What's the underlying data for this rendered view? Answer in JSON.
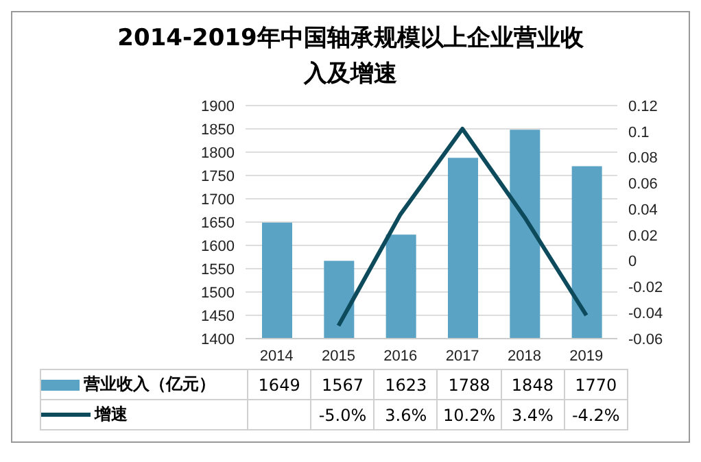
{
  "chart_data": {
    "type": "bar",
    "title": "2014-2019年中国轴承规模以上企业营业收入及增速",
    "categories": [
      "2014",
      "2015",
      "2016",
      "2017",
      "2018",
      "2019"
    ],
    "series": [
      {
        "name": "营业收入（亿元）",
        "color": "#5ba3c4",
        "values": [
          1649,
          1567,
          1623,
          1788,
          1848,
          1770
        ],
        "value_labels": [
          "1649",
          "1567",
          "1623",
          "1788",
          "1848",
          "1770"
        ]
      },
      {
        "name": "增速",
        "type": "line",
        "axis": "y2",
        "color": "#0d4b5c",
        "values": [
          null,
          -0.05,
          0.036,
          0.102,
          0.034,
          -0.042
        ],
        "value_labels": [
          null,
          "-5.0%",
          "3.6%",
          "10.2%",
          "3.4%",
          "-4.2%"
        ]
      }
    ],
    "ylim": [
      1400,
      1900
    ],
    "yticks": [
      1400,
      1450,
      1500,
      1550,
      1600,
      1650,
      1700,
      1750,
      1800,
      1850,
      1900
    ],
    "y2lim": [
      -0.06,
      0.12
    ],
    "y2ticks": [
      -0.06,
      -0.04,
      -0.02,
      0,
      0.02,
      0.04,
      0.06,
      0.08,
      0.1,
      0.12
    ],
    "grid": "y",
    "legend": "bottom",
    "marker": "none"
  }
}
